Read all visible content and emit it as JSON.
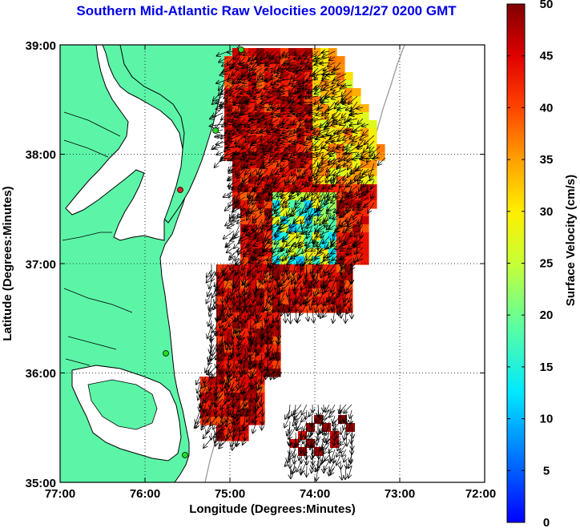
{
  "title": "Southern Mid-Atlantic Raw Velocities 2009/12/27 0200 GMT",
  "map": {
    "x_label": "Longitude (Degrees:Minutes)",
    "y_label": "Latitude (Degrees:Minutes)",
    "x_ticks": [
      "77:00",
      "76:00",
      "75:00",
      "74:00",
      "73:00",
      "72:00"
    ],
    "y_ticks": [
      "39:00",
      "38:00",
      "37:00",
      "36:00",
      "35:00"
    ],
    "lon_range": [
      -77,
      -72
    ],
    "lat_range": [
      35,
      39
    ],
    "grid": true,
    "land_color": "#5cf5a8",
    "water_color": "#ffffff"
  },
  "colorbar": {
    "label": "Surface Velocity (cm/s)",
    "ticks": [
      "50",
      "45",
      "40",
      "35",
      "30",
      "25",
      "20",
      "15",
      "10",
      "5",
      "0"
    ],
    "range": [
      0,
      50
    ],
    "colormap": "jet"
  }
}
